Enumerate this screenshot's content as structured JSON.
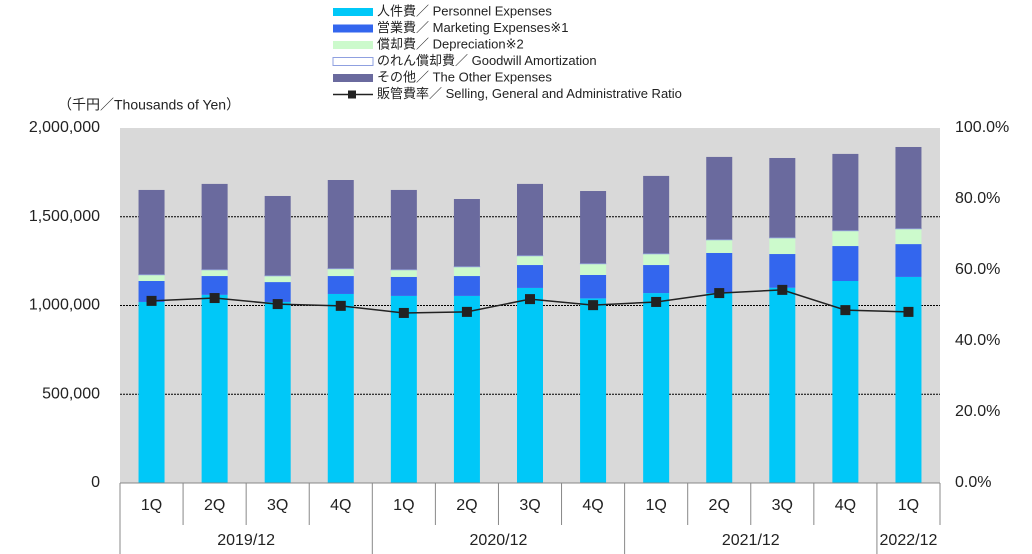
{
  "chart_data": {
    "type": "stacked-bar-line",
    "unit_label": "（千円／Thousands of Yen）",
    "categories": [
      "1Q",
      "2Q",
      "3Q",
      "4Q",
      "1Q",
      "2Q",
      "3Q",
      "4Q",
      "1Q",
      "2Q",
      "3Q",
      "4Q",
      "1Q"
    ],
    "group_labels": [
      "2019/12",
      "2020/12",
      "2021/12",
      "2022/12"
    ],
    "group_sizes": [
      4,
      4,
      4,
      1
    ],
    "series": [
      {
        "name": "人件費／ Personnel Expenses",
        "color": "#00c8f8",
        "values": [
          1020000,
          1060000,
          1020000,
          1065000,
          1054000,
          1054000,
          1099000,
          1040000,
          1070000,
          1070000,
          1100000,
          1138000,
          1161000
        ]
      },
      {
        "name": "営業費／ Marketing Expenses※1",
        "color": "#3366ee",
        "values": [
          118000,
          106000,
          112000,
          101000,
          107000,
          112000,
          129000,
          132000,
          158000,
          226000,
          190000,
          197000,
          185000
        ]
      },
      {
        "name": "償却費／ Depreciation※2",
        "color": "#ccfacc",
        "values": [
          34000,
          34000,
          34000,
          40000,
          39000,
          51000,
          51000,
          62000,
          62000,
          73000,
          90000,
          85000,
          85000
        ]
      },
      {
        "name": "のれん償却費／ Goodwill Amortization",
        "color": "#ffffff",
        "border": "#8fa0e0",
        "values": [
          3000,
          3000,
          3000,
          3000,
          3000,
          3000,
          3000,
          3000,
          3000,
          3000,
          3000,
          3000,
          3000
        ]
      },
      {
        "name": "その他／ The Other Expenses",
        "color": "#6a6a9e",
        "values": [
          476000,
          482000,
          448000,
          498000,
          448000,
          380000,
          403000,
          408000,
          437000,
          465000,
          448000,
          431000,
          459000
        ]
      },
      {
        "name": "販管費率／ Selling, General and Administrative Ratio",
        "color": "#222222",
        "axis": "y2",
        "values": [
          51.3,
          52.1,
          50.4,
          49.9,
          47.9,
          48.2,
          51.8,
          50.1,
          51.0,
          53.5,
          54.4,
          48.7,
          48.2
        ]
      }
    ],
    "ylim": [
      0,
      2000000
    ],
    "yticks": [
      0,
      {
        "value": 500000,
        "label": "500,000"
      },
      {
        "value": 1000000,
        "label": "1,000,000"
      },
      {
        "value": 1500000,
        "label": "1,500,000"
      },
      {
        "value": 2000000,
        "label": "2,000,000"
      }
    ],
    "y2lim": [
      0,
      100
    ],
    "y2ticks": [
      {
        "value": 0,
        "label": "0.0%"
      },
      {
        "value": 20,
        "label": "20.0%"
      },
      {
        "value": 40,
        "label": "40.0%"
      },
      {
        "value": 60,
        "label": "60.0%"
      },
      {
        "value": 80,
        "label": "80.0%"
      },
      {
        "value": 100,
        "label": "100.0%"
      }
    ],
    "grid": true,
    "plot_background": "#d9d9d9"
  }
}
